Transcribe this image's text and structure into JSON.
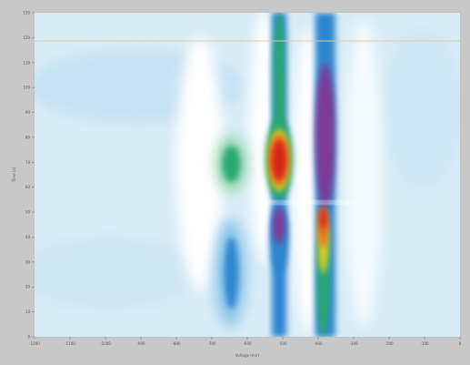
{
  "chart_data": {
    "type": "heatmap",
    "title": "",
    "xlabel": "Voltage (mV)",
    "ylabel": "Time (s)",
    "x_ticks": [
      "-1200",
      "-1100",
      "-1000",
      "-900",
      "-800",
      "-700",
      "-600",
      "-500",
      "-400",
      "-300",
      "-200",
      "-100",
      "0"
    ],
    "y_ticks": [
      "0",
      "10",
      "20",
      "30",
      "40",
      "50",
      "60",
      "70",
      "80",
      "90",
      "100",
      "110",
      "120",
      "130"
    ],
    "xlim": [
      -1200,
      0
    ],
    "ylim": [
      0,
      130
    ],
    "colormap": [
      "#ffffff",
      "#d8ecf6",
      "#8fc7ea",
      "#2f86cf",
      "#2aa86f",
      "#d7d020",
      "#ef6a1c",
      "#d8231a",
      "#7d3a97"
    ],
    "features": [
      {
        "x": -380,
        "y_from": 0,
        "y_to": 130,
        "peak": "purple",
        "region": "upper"
      },
      {
        "x": -380,
        "y_from": 0,
        "y_to": 50,
        "peak": "red",
        "region": "lower"
      },
      {
        "x": -510,
        "y_from": 50,
        "y_to": 130,
        "peak": "red",
        "region": "upper"
      },
      {
        "x": -510,
        "y_from": 0,
        "y_to": 50,
        "peak": "purple",
        "region": "lower"
      },
      {
        "x": -650,
        "y_from": 60,
        "y_to": 80,
        "peak": "green",
        "region": "middle"
      },
      {
        "x": -650,
        "y_from": 0,
        "y_to": 50,
        "peak": "blue",
        "region": "lower"
      }
    ],
    "grid": false,
    "legend": "none"
  }
}
